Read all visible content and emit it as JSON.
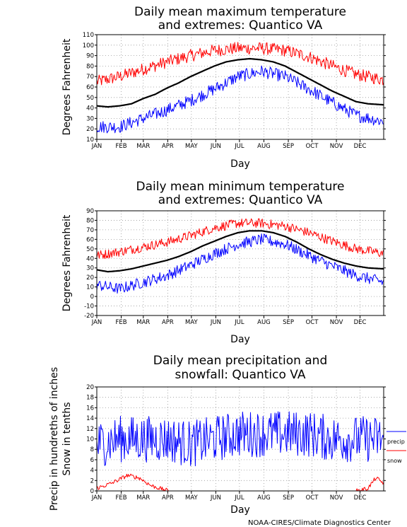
{
  "footer": {
    "credit": "NOAA-CIRES/Climate Diagnostics Center"
  },
  "chart_data": [
    {
      "type": "line",
      "title": "Daily mean maximum temperature\nand extremes: Quantico VA",
      "xlabel": "Day",
      "ylabel": "Degrees Fahrenheit",
      "ylim": [
        10,
        110
      ],
      "yticks": [
        10,
        20,
        30,
        40,
        50,
        60,
        70,
        80,
        90,
        100,
        110
      ],
      "xlim": [
        1,
        365
      ],
      "x_tick_labels": [
        "JAN",
        "FEB",
        "MAR",
        "APR",
        "MAY",
        "JUN",
        "JUL",
        "AUG",
        "SEP",
        "OCT",
        "NOV",
        "DEC"
      ],
      "x_tick_days": [
        1,
        32,
        60,
        91,
        121,
        152,
        182,
        213,
        244,
        274,
        305,
        335
      ],
      "grid": true,
      "noise": 10,
      "series": [
        {
          "key": "mean",
          "color": "#000000",
          "width": 2.2,
          "noise_amp": 0,
          "x": [
            1,
            15,
            30,
            45,
            60,
            75,
            90,
            105,
            120,
            135,
            150,
            165,
            180,
            195,
            210,
            225,
            240,
            255,
            270,
            285,
            300,
            315,
            330,
            345,
            365
          ],
          "values": [
            42,
            41,
            42,
            44,
            49,
            53,
            59,
            64,
            70,
            75,
            80,
            84,
            86,
            87,
            86,
            84,
            80,
            74,
            68,
            62,
            56,
            51,
            46,
            44,
            43
          ]
        },
        {
          "key": "high",
          "color": "#ff0000",
          "width": 1,
          "noise_amp": 6,
          "x": [
            1,
            30,
            60,
            90,
            120,
            150,
            180,
            210,
            240,
            270,
            300,
            330,
            365
          ],
          "values": [
            65,
            70,
            77,
            84,
            90,
            95,
            97,
            97,
            95,
            89,
            80,
            72,
            67
          ]
        },
        {
          "key": "low",
          "color": "#0000ff",
          "width": 1,
          "noise_amp": 6,
          "x": [
            1,
            30,
            60,
            90,
            120,
            150,
            180,
            210,
            240,
            270,
            300,
            330,
            365
          ],
          "values": [
            22,
            22,
            30,
            38,
            47,
            58,
            70,
            75,
            70,
            58,
            45,
            33,
            27
          ]
        }
      ]
    },
    {
      "type": "line",
      "title": "Daily mean minimum temperature\nand extremes: Quantico VA",
      "xlabel": "Day",
      "ylabel": "Degrees Fahrenheit",
      "ylim": [
        -20,
        90
      ],
      "yticks": [
        -20,
        -10,
        0,
        10,
        20,
        30,
        40,
        50,
        60,
        70,
        80,
        90
      ],
      "xlim": [
        1,
        365
      ],
      "x_tick_labels": [
        "JAN",
        "FEB",
        "MAR",
        "APR",
        "MAY",
        "JUN",
        "JUL",
        "AUG",
        "SEP",
        "OCT",
        "NOV",
        "DEC"
      ],
      "x_tick_days": [
        1,
        32,
        60,
        91,
        121,
        152,
        182,
        213,
        244,
        274,
        305,
        335
      ],
      "grid": true,
      "noise": 10,
      "series": [
        {
          "key": "mean",
          "color": "#000000",
          "width": 2.2,
          "noise_amp": 0,
          "x": [
            1,
            15,
            30,
            45,
            60,
            75,
            90,
            105,
            120,
            135,
            150,
            165,
            180,
            195,
            210,
            225,
            240,
            255,
            270,
            285,
            300,
            315,
            330,
            345,
            365
          ],
          "values": [
            28,
            26,
            27,
            29,
            32,
            35,
            38,
            42,
            47,
            53,
            58,
            63,
            67,
            69,
            69,
            67,
            63,
            57,
            50,
            44,
            39,
            35,
            32,
            30,
            29
          ]
        },
        {
          "key": "high",
          "color": "#ff0000",
          "width": 1,
          "noise_amp": 5,
          "x": [
            1,
            30,
            60,
            90,
            120,
            150,
            180,
            210,
            240,
            270,
            300,
            330,
            365
          ],
          "values": [
            43,
            47,
            52,
            57,
            64,
            72,
            77,
            77,
            74,
            67,
            58,
            50,
            45
          ]
        },
        {
          "key": "low",
          "color": "#0000ff",
          "width": 1,
          "noise_amp": 6,
          "x": [
            1,
            30,
            60,
            90,
            120,
            150,
            180,
            210,
            240,
            270,
            300,
            330,
            365
          ],
          "values": [
            12,
            8,
            15,
            22,
            33,
            45,
            55,
            60,
            55,
            43,
            32,
            22,
            15
          ]
        }
      ]
    },
    {
      "type": "line",
      "title": "Daily mean precipitation and\nsnowfall: Quantico VA",
      "xlabel": "Day",
      "ylabel": "Precip in hundreths of inches\nSnow in tenths",
      "ylim": [
        0,
        20
      ],
      "yticks": [
        0,
        2,
        4,
        6,
        8,
        10,
        12,
        14,
        16,
        18,
        20
      ],
      "xlim": [
        1,
        365
      ],
      "x_tick_labels": [
        "JAN",
        "FEB",
        "MAR",
        "APR",
        "MAY",
        "JUN",
        "JUL",
        "AUG",
        "SEP",
        "OCT",
        "NOV",
        "DEC"
      ],
      "x_tick_days": [
        1,
        32,
        60,
        91,
        121,
        152,
        182,
        213,
        244,
        274,
        305,
        335
      ],
      "grid": true,
      "noise": 20,
      "legend": {
        "position": "right",
        "entries": [
          "precip",
          "snow"
        ]
      },
      "series": [
        {
          "key": "precip",
          "name": "precip",
          "color": "#0000ff",
          "width": 1,
          "noise_amp": 4.5,
          "x": [
            1,
            30,
            60,
            90,
            120,
            150,
            180,
            210,
            240,
            270,
            300,
            330,
            365
          ],
          "values": [
            9,
            10,
            10,
            10,
            9,
            10,
            11,
            11,
            11,
            11,
            10,
            10,
            10
          ]
        },
        {
          "key": "snow",
          "name": "snow",
          "color": "#ff0000",
          "width": 1,
          "noise_amp": 0.4,
          "x": [
            1,
            20,
            40,
            55,
            70,
            85,
            92,
            100,
            330,
            345,
            355,
            365
          ],
          "values": [
            0.5,
            1.5,
            3,
            2.5,
            1,
            0.3,
            0,
            0,
            0,
            0.5,
            2.5,
            1.5
          ]
        }
      ]
    }
  ]
}
